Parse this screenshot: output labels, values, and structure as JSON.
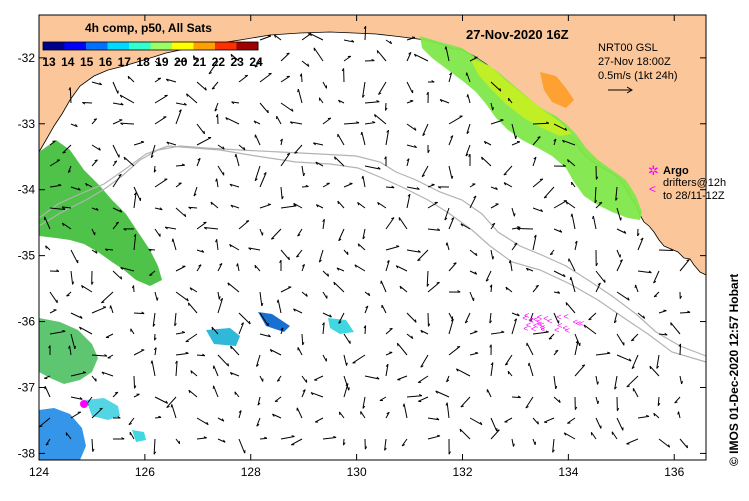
{
  "map": {
    "title": "27-Nov-2020 16Z",
    "credit": "© IMOS 01-Dec-2020 12:57 Hobart",
    "colors": {
      "land": "#fbc79a",
      "sea": "#ffffff",
      "argo": "#ff00ff",
      "track": "#b3b3b3"
    },
    "lon_range": [
      124,
      136.6
    ],
    "lat_range": [
      -38.1,
      -31.35
    ],
    "lon_ticks": [
      "124",
      "126",
      "128",
      "130",
      "132",
      "134",
      "136"
    ],
    "lat_ticks": [
      "-32",
      "-33",
      "-34",
      "-35",
      "-36",
      "-37",
      "-38"
    ]
  },
  "colorbar": {
    "title": "4h comp, p50, All Sats",
    "labels": [
      "13",
      "14",
      "15",
      "16",
      "17",
      "18",
      "19",
      "20",
      "21",
      "22",
      "23",
      "24"
    ],
    "colors": [
      "#00008f",
      "#0000ff",
      "#0070ff",
      "#00d8ff",
      "#30ffce",
      "#9aff64",
      "#ffff00",
      "#ffa000",
      "#ff3000",
      "#a00000"
    ]
  },
  "current_legend": {
    "line1": "NRT00 GSL",
    "line2": "27-Nov 18:00Z",
    "line3": "0.5m/s (1kt 24h)"
  },
  "argo_legend": {
    "label": "Argo",
    "drifters_line1": "drifters@12h",
    "drifters_line2": "to 28/11-12Z"
  }
}
